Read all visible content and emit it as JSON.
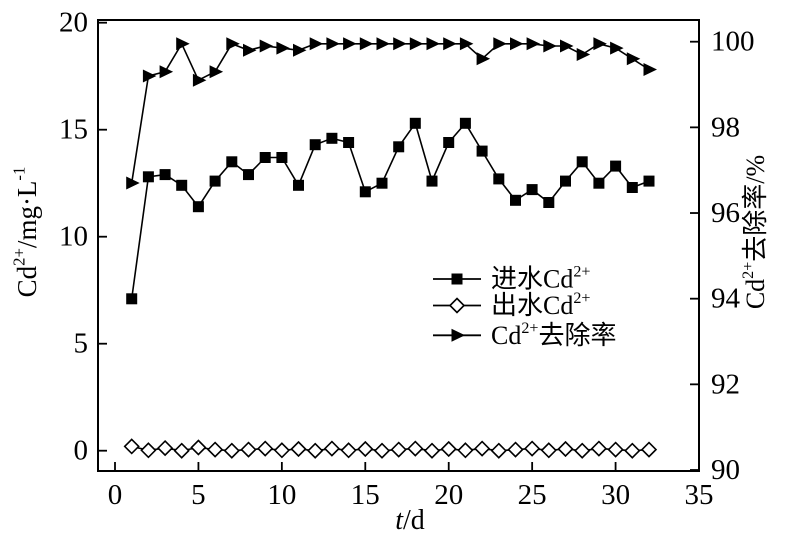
{
  "figure": {
    "background": "#ffffff",
    "ink_color": "#000000"
  },
  "chart_data": {
    "type": "line",
    "title": "",
    "grid": false,
    "legend_position": "inside-right-middle",
    "x": [
      1,
      2,
      3,
      4,
      5,
      6,
      7,
      8,
      9,
      10,
      11,
      12,
      13,
      14,
      15,
      16,
      17,
      18,
      19,
      20,
      21,
      22,
      23,
      24,
      25,
      26,
      27,
      28,
      29,
      30,
      31,
      32
    ],
    "x_axis": {
      "label": "t/d",
      "label_parts": [
        {
          "text": "t",
          "italic": true
        },
        {
          "text": "/d",
          "italic": false
        }
      ],
      "min": 0,
      "max": 35,
      "ticks": [
        0,
        5,
        10,
        15,
        20,
        25,
        30,
        35
      ]
    },
    "left_axis": {
      "label": "Cd²⁺/mg·L⁻¹",
      "min": 0,
      "max": 20,
      "ticks": [
        0,
        5,
        10,
        15,
        20
      ]
    },
    "right_axis": {
      "label": "Cd²⁺去除率/%",
      "min": 90,
      "max": 100,
      "ticks": [
        90,
        92,
        94,
        96,
        98,
        100
      ]
    },
    "series": [
      {
        "key": "influent-cd",
        "name": "进水Cd²⁺",
        "axis": "left",
        "marker": "filled-square",
        "line": "solid",
        "color": "#000000",
        "values": [
          7.1,
          12.8,
          12.9,
          12.4,
          11.4,
          12.6,
          13.5,
          12.9,
          13.7,
          13.7,
          12.4,
          14.3,
          14.6,
          14.4,
          12.1,
          12.5,
          14.2,
          15.3,
          12.6,
          14.4,
          15.3,
          14.0,
          12.7,
          11.7,
          12.2,
          11.6,
          12.6,
          13.5,
          12.5,
          13.3,
          12.3,
          12.6
        ]
      },
      {
        "key": "effluent-cd",
        "name": "出水Cd²⁺",
        "axis": "left",
        "marker": "open-diamond",
        "line": "solid",
        "color": "#000000",
        "values": [
          0.2,
          0.02,
          0.12,
          0.0,
          0.15,
          0.05,
          0.0,
          0.05,
          0.1,
          0.02,
          0.08,
          0.0,
          0.1,
          0.02,
          0.08,
          0.0,
          0.05,
          0.1,
          0.0,
          0.08,
          0.02,
          0.1,
          0.0,
          0.05,
          0.1,
          0.02,
          0.08,
          0.0,
          0.1,
          0.05,
          0.0,
          0.05
        ]
      },
      {
        "key": "removal-rate",
        "name": "Cd²⁺去除率",
        "axis": "right",
        "marker": "filled-right-triangle",
        "line": "solid",
        "color": "#000000",
        "values": [
          96.7,
          99.2,
          99.3,
          99.95,
          99.1,
          99.3,
          99.95,
          99.8,
          99.9,
          99.85,
          99.8,
          99.95,
          99.95,
          99.95,
          99.95,
          99.95,
          99.95,
          99.95,
          99.95,
          99.95,
          99.95,
          99.6,
          99.95,
          99.95,
          99.95,
          99.9,
          99.9,
          99.7,
          99.95,
          99.85,
          99.6,
          99.35
        ]
      }
    ]
  }
}
